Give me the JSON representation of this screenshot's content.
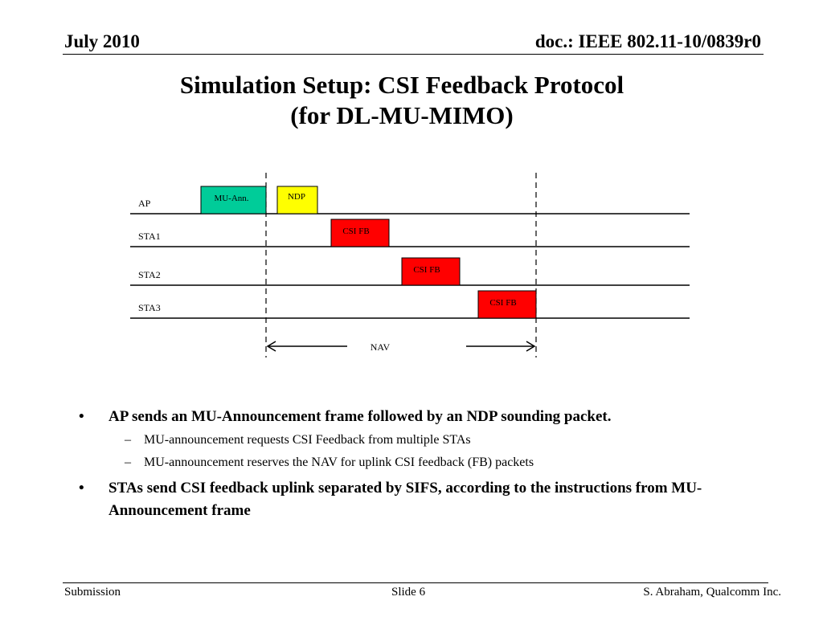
{
  "header": {
    "date": "July 2010",
    "doc_id": "doc.: IEEE 802.11-10/0839r0"
  },
  "title": {
    "line1": "Simulation Setup: CSI Feedback Protocol",
    "line2": "(for DL-MU-MIMO)"
  },
  "diagram": {
    "rows": [
      "AP",
      "STA1",
      "STA2",
      "STA3"
    ],
    "frames": {
      "mu_ann": "MU-Ann.",
      "ndp": "NDP",
      "csi_fb_1": "CSI FB",
      "csi_fb_2": "CSI FB",
      "csi_fb_3": "CSI FB"
    },
    "nav_label": "NAV",
    "colors": {
      "mu_ann": "#00CC99",
      "ndp": "#FFFF00",
      "csi_fb": "#FF0000"
    }
  },
  "bullets": [
    {
      "text": "AP sends an MU-Announcement frame followed by an NDP sounding packet.",
      "sub": [
        "MU-announcement requests CSI Feedback from multiple STAs",
        "MU-announcement reserves the NAV for uplink CSI feedback  (FB) packets"
      ]
    },
    {
      "text": "STAs send CSI feedback uplink separated by SIFS, according to the instructions from MU-Announcement frame",
      "sub": []
    }
  ],
  "footer": {
    "left": "Submission",
    "center": "Slide 6",
    "right": "S. Abraham, Qualcomm Inc."
  }
}
